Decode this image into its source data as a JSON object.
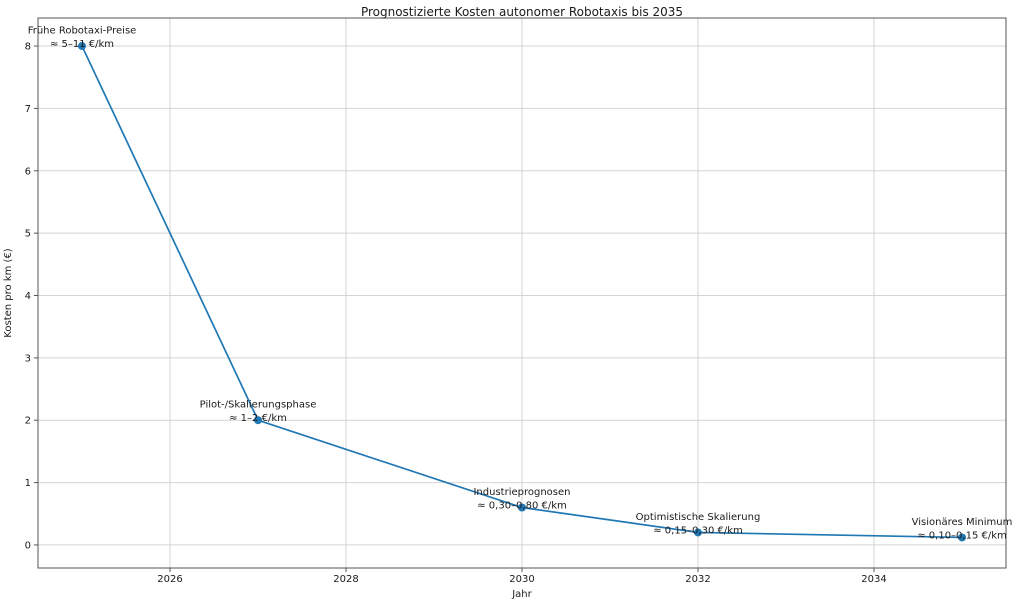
{
  "chart_data": {
    "type": "line",
    "title": "Prognostizierte Kosten autonomer Robotaxis bis 2035",
    "xlabel": "Jahr",
    "ylabel": "Kosten pro km (€)",
    "x": [
      2025,
      2027,
      2030,
      2032,
      2035
    ],
    "y": [
      8,
      2,
      0.6,
      0.2,
      0.12
    ],
    "xlim": [
      2024.5,
      2035.5
    ],
    "ylim": [
      -0.37,
      8.45
    ],
    "xticks": [
      2026,
      2028,
      2030,
      2032,
      2034
    ],
    "yticks": [
      0,
      1,
      2,
      3,
      4,
      5,
      6,
      7,
      8
    ],
    "grid": true,
    "legend": "none",
    "line_color": "#1f77b4",
    "marker_color": "#1f77b4",
    "grid_color": "#d4d4d4",
    "axis_color": "#555555",
    "text_color": "#1a1a1a",
    "annotations": [
      {
        "x": 2025,
        "y": 8,
        "lines": [
          "Frühe Robotaxi-Preise",
          "≈ 5–11 €/km"
        ]
      },
      {
        "x": 2027,
        "y": 2,
        "lines": [
          "Pilot-/Skalierungsphase",
          "≈ 1–2 €/km"
        ]
      },
      {
        "x": 2030,
        "y": 0.6,
        "lines": [
          "Industrieprognosen",
          "≈ 0,30–0,80 €/km"
        ]
      },
      {
        "x": 2032,
        "y": 0.2,
        "lines": [
          "Optimistische Skalierung",
          "≈ 0,15–0,30 €/km"
        ]
      },
      {
        "x": 2035,
        "y": 0.12,
        "lines": [
          "Visionäres Minimum",
          "≈ 0,10–0,15 €/km"
        ]
      }
    ]
  }
}
